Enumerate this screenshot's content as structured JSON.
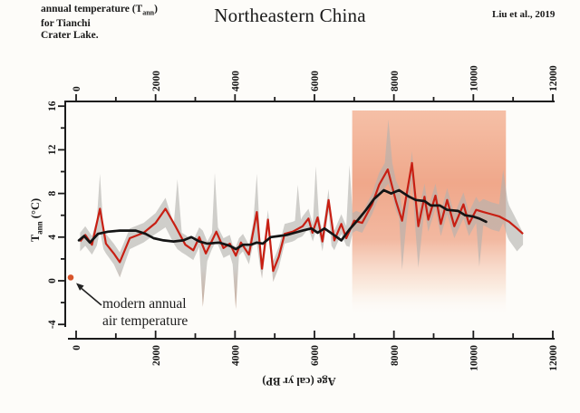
{
  "header": {
    "note": {
      "pre": "annual temperature (T",
      "sub": "ann",
      "post": ")",
      "line2": "for Tianchi",
      "line3": "Crater Lake."
    },
    "title": "Northeastern China",
    "citation": "Liu et al., 2019"
  },
  "ylabel": {
    "pre": "T",
    "sub": "ann",
    "post": " (°C)"
  },
  "xlabel": "Age (cal yr BP)",
  "annotation": {
    "line1": "modern annual",
    "line2": "air temperature"
  },
  "colors": {
    "red": "#c81f13",
    "black": "#141414",
    "band": "#b3b1ae",
    "band_brown": "#a2755c",
    "box_top": "#f4b598",
    "box_mid": "#ee9e7e",
    "box_low": "#f8dcc9",
    "dot": "#d8542a",
    "axis": "#1b1b1b",
    "tick_label": "#151515"
  },
  "chart_data": {
    "type": "line",
    "title": "Northeastern China",
    "xlabel": "Age (cal yr BP)",
    "ylabel": "Tann (°C)",
    "x_range": [
      0,
      12000
    ],
    "y_range": [
      -4,
      16
    ],
    "x_ticks_major": [
      0,
      2000,
      4000,
      6000,
      8000,
      10000,
      12000
    ],
    "x_ticks_minor": [
      1000,
      3000,
      5000,
      7000,
      9000,
      11000
    ],
    "y_ticks_major": [
      -4,
      0,
      4,
      8,
      12,
      16
    ],
    "y_ticks_minor": [
      -2,
      2,
      6,
      10,
      14
    ],
    "grid": false,
    "legend": false,
    "highlight_box": {
      "x0": 6950,
      "x1": 10820
    },
    "modern_point": {
      "age": 0,
      "temp": 0.3
    },
    "series": [
      {
        "name": "reconstructed annual temperature",
        "style": "line-red",
        "points": [
          [
            100,
            3.6
          ],
          [
            230,
            4.2
          ],
          [
            400,
            3.3
          ],
          [
            600,
            6.6
          ],
          [
            750,
            3.4
          ],
          [
            950,
            2.5
          ],
          [
            1100,
            1.7
          ],
          [
            1350,
            3.9
          ],
          [
            1700,
            4.4
          ],
          [
            2000,
            5.3
          ],
          [
            2250,
            6.6
          ],
          [
            2500,
            5.0
          ],
          [
            2750,
            3.3
          ],
          [
            2950,
            2.8
          ],
          [
            3100,
            4.0
          ],
          [
            3265,
            2.5
          ],
          [
            3530,
            4.5
          ],
          [
            3710,
            3.0
          ],
          [
            3870,
            3.4
          ],
          [
            4020,
            2.3
          ],
          [
            4150,
            3.5
          ],
          [
            4350,
            2.4
          ],
          [
            4550,
            6.3
          ],
          [
            4680,
            1.1
          ],
          [
            4830,
            5.6
          ],
          [
            4960,
            0.9
          ],
          [
            5100,
            2.2
          ],
          [
            5250,
            4.3
          ],
          [
            5450,
            4.5
          ],
          [
            5700,
            5.0
          ],
          [
            5850,
            5.7
          ],
          [
            5950,
            4.4
          ],
          [
            6080,
            5.8
          ],
          [
            6200,
            3.6
          ],
          [
            6355,
            7.4
          ],
          [
            6500,
            3.7
          ],
          [
            6675,
            5.2
          ],
          [
            6800,
            3.9
          ],
          [
            7000,
            5.5
          ],
          [
            7200,
            5.3
          ],
          [
            7450,
            7.0
          ],
          [
            7630,
            8.8
          ],
          [
            7845,
            10.2
          ],
          [
            8050,
            7.3
          ],
          [
            8205,
            5.5
          ],
          [
            8455,
            10.8
          ],
          [
            8615,
            5.0
          ],
          [
            8770,
            7.7
          ],
          [
            8865,
            5.6
          ],
          [
            9045,
            7.8
          ],
          [
            9180,
            5.2
          ],
          [
            9340,
            7.4
          ],
          [
            9520,
            5.0
          ],
          [
            9750,
            7.0
          ],
          [
            9890,
            5.2
          ],
          [
            10070,
            6.5
          ],
          [
            10250,
            6.3
          ],
          [
            10450,
            6.1
          ],
          [
            10650,
            5.9
          ],
          [
            10900,
            5.4
          ],
          [
            11100,
            4.8
          ],
          [
            11250,
            4.3
          ]
        ]
      },
      {
        "name": "smoothed temperature",
        "style": "line-black",
        "points": [
          [
            70,
            3.7
          ],
          [
            200,
            4.1
          ],
          [
            350,
            3.5
          ],
          [
            550,
            4.3
          ],
          [
            800,
            4.5
          ],
          [
            1100,
            4.6
          ],
          [
            1500,
            4.6
          ],
          [
            1750,
            4.3
          ],
          [
            1950,
            3.9
          ],
          [
            2200,
            3.7
          ],
          [
            2450,
            3.6
          ],
          [
            2700,
            3.7
          ],
          [
            2900,
            4.0
          ],
          [
            3100,
            3.6
          ],
          [
            3300,
            3.4
          ],
          [
            3600,
            3.5
          ],
          [
            3870,
            3.2
          ],
          [
            4020,
            2.9
          ],
          [
            4200,
            3.3
          ],
          [
            4400,
            3.3
          ],
          [
            4550,
            3.5
          ],
          [
            4700,
            3.4
          ],
          [
            4900,
            4.0
          ],
          [
            5100,
            4.1
          ],
          [
            5300,
            4.2
          ],
          [
            5500,
            4.4
          ],
          [
            5700,
            4.6
          ],
          [
            5925,
            4.8
          ],
          [
            6080,
            4.4
          ],
          [
            6250,
            4.8
          ],
          [
            6450,
            4.3
          ],
          [
            6675,
            3.7
          ],
          [
            6880,
            4.7
          ],
          [
            7100,
            5.6
          ],
          [
            7300,
            6.5
          ],
          [
            7500,
            7.5
          ],
          [
            7745,
            8.3
          ],
          [
            7930,
            8.0
          ],
          [
            8130,
            8.3
          ],
          [
            8385,
            7.7
          ],
          [
            8550,
            7.4
          ],
          [
            8770,
            7.3
          ],
          [
            8930,
            6.9
          ],
          [
            9155,
            6.9
          ],
          [
            9340,
            6.5
          ],
          [
            9615,
            6.4
          ],
          [
            9795,
            6.0
          ],
          [
            9980,
            5.9
          ],
          [
            10150,
            5.7
          ],
          [
            10320,
            5.4
          ]
        ]
      },
      {
        "name": "uncertainty band",
        "style": "band",
        "points": [
          [
            100,
            2.7,
            4.4
          ],
          [
            230,
            3.2,
            5.0
          ],
          [
            400,
            2.4,
            4.1
          ],
          [
            520,
            3.2,
            5.6
          ],
          [
            600,
            4.6,
            9.8
          ],
          [
            690,
            2.9,
            4.6
          ],
          [
            750,
            2.5,
            4.3
          ],
          [
            950,
            1.5,
            3.4
          ],
          [
            1100,
            0.3,
            2.6
          ],
          [
            1350,
            2.9,
            4.8
          ],
          [
            1700,
            3.5,
            5.3
          ],
          [
            2000,
            4.3,
            6.2
          ],
          [
            2250,
            4.9,
            7.6
          ],
          [
            2460,
            3.4,
            5.2
          ],
          [
            2550,
            2.9,
            9.3
          ],
          [
            2660,
            2.6,
            4.4
          ],
          [
            2750,
            2.4,
            4.2
          ],
          [
            2950,
            1.9,
            3.7
          ],
          [
            3100,
            3.1,
            4.9
          ],
          [
            3190,
            -2.4,
            4.6
          ],
          [
            3300,
            1.8,
            3.6
          ],
          [
            3420,
            2.9,
            4.4
          ],
          [
            3490,
            3.4,
            9.9
          ],
          [
            3570,
            3.3,
            4.9
          ],
          [
            3710,
            2.1,
            3.9
          ],
          [
            3870,
            2.4,
            4.2
          ],
          [
            3940,
            1.5,
            3.3
          ],
          [
            4020,
            -2.6,
            3.1
          ],
          [
            4100,
            2.3,
            3.9
          ],
          [
            4200,
            2.7,
            4.3
          ],
          [
            4350,
            1.5,
            3.3
          ],
          [
            4460,
            3.4,
            5.4
          ],
          [
            4550,
            3.4,
            9.8
          ],
          [
            4640,
            1.0,
            3.2
          ],
          [
            4680,
            0.2,
            2.0
          ],
          [
            4830,
            4.7,
            6.5
          ],
          [
            4960,
            -0.1,
            1.8
          ],
          [
            5100,
            1.2,
            3.1
          ],
          [
            5250,
            3.4,
            5.2
          ],
          [
            5450,
            3.6,
            5.4
          ],
          [
            5510,
            3.7,
            5.5
          ],
          [
            5580,
            3.9,
            8.8
          ],
          [
            5660,
            4.0,
            5.6
          ],
          [
            5700,
            4.1,
            5.9
          ],
          [
            5850,
            4.8,
            6.6
          ],
          [
            5960,
            3.6,
            5.2
          ],
          [
            6035,
            4.6,
            10.5
          ],
          [
            6110,
            4.4,
            6.0
          ],
          [
            6200,
            2.7,
            4.5
          ],
          [
            6355,
            6.4,
            8.4
          ],
          [
            6430,
            3.2,
            4.9
          ],
          [
            6500,
            2.8,
            4.6
          ],
          [
            6675,
            4.3,
            6.1
          ],
          [
            6800,
            3.2,
            5.0
          ],
          [
            6880,
            3.1,
            10.6
          ],
          [
            6960,
            4.4,
            6.2
          ],
          [
            7050,
            4.6,
            6.4
          ],
          [
            7200,
            4.4,
            6.2
          ],
          [
            7450,
            6.1,
            8.0
          ],
          [
            7630,
            7.7,
            9.9
          ],
          [
            7770,
            8.5,
            10.8
          ],
          [
            7860,
            8.9,
            14.8
          ],
          [
            7960,
            7.8,
            10.8
          ],
          [
            8050,
            6.4,
            9.2
          ],
          [
            8130,
            5.8,
            8.6
          ],
          [
            8205,
            1.0,
            6.5
          ],
          [
            8310,
            5.2,
            7.8
          ],
          [
            8380,
            7.2,
            9.2
          ],
          [
            8455,
            9.3,
            11.9
          ],
          [
            8540,
            4.8,
            7.8
          ],
          [
            8615,
            1.2,
            6.2
          ],
          [
            8770,
            6.6,
            8.9
          ],
          [
            8865,
            4.5,
            6.7
          ],
          [
            9045,
            6.6,
            8.9
          ],
          [
            9180,
            4.1,
            6.3
          ],
          [
            9340,
            6.1,
            8.5
          ],
          [
            9520,
            3.9,
            6.1
          ],
          [
            9750,
            5.7,
            8.1
          ],
          [
            9890,
            4.1,
            6.3
          ],
          [
            10070,
            5.3,
            7.7
          ],
          [
            10150,
            1.3,
            7.2
          ],
          [
            10250,
            5.1,
            7.5
          ],
          [
            10450,
            4.7,
            7.2
          ],
          [
            10650,
            4.5,
            7.0
          ],
          [
            10750,
            5.3,
            10.2
          ],
          [
            10860,
            4.0,
            7.4
          ],
          [
            10900,
            3.7,
            6.9
          ],
          [
            11100,
            2.7,
            5.5
          ],
          [
            11250,
            3.3,
            4.4
          ]
        ]
      }
    ]
  }
}
